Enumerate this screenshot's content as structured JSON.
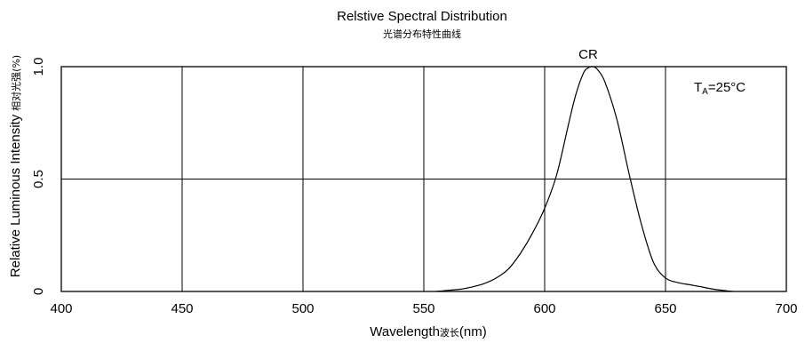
{
  "chart_data": {
    "type": "line",
    "title": "Relstive Spectral Distribution",
    "subtitle": "光谱分布特性曲线",
    "xlabel": "Wavelength",
    "xlabel_cn": "波长",
    "xlabel_unit": "(nm)",
    "ylabel": "Relative Luminous Intensity",
    "ylabel_cn": "相对光强",
    "ylabel_unit": "(%)",
    "xlim": [
      400,
      700
    ],
    "ylim": [
      0,
      1.0
    ],
    "x_ticks": [
      "400",
      "450",
      "500",
      "550",
      "600",
      "650",
      "700"
    ],
    "y_ticks": [
      "0",
      "0.5",
      "1.0"
    ],
    "grid": true,
    "annotations": {
      "peak_label": "CR",
      "temp_main": "T",
      "temp_sub": "A",
      "temp_rest": "=25°C"
    },
    "series": [
      {
        "color": "#000000",
        "x": [
          555,
          560,
          565,
          570,
          575,
          580,
          585,
          590,
          595,
          600,
          605,
          610,
          613,
          616,
          618,
          620,
          622,
          625,
          630,
          635,
          640,
          645,
          650,
          655,
          660,
          665,
          670,
          675,
          678
        ],
        "y": [
          0.0,
          0.005,
          0.01,
          0.02,
          0.035,
          0.06,
          0.1,
          0.17,
          0.26,
          0.37,
          0.52,
          0.75,
          0.88,
          0.97,
          0.995,
          1.0,
          0.985,
          0.93,
          0.76,
          0.52,
          0.3,
          0.13,
          0.06,
          0.04,
          0.03,
          0.02,
          0.01,
          0.003,
          0.0
        ]
      }
    ]
  }
}
